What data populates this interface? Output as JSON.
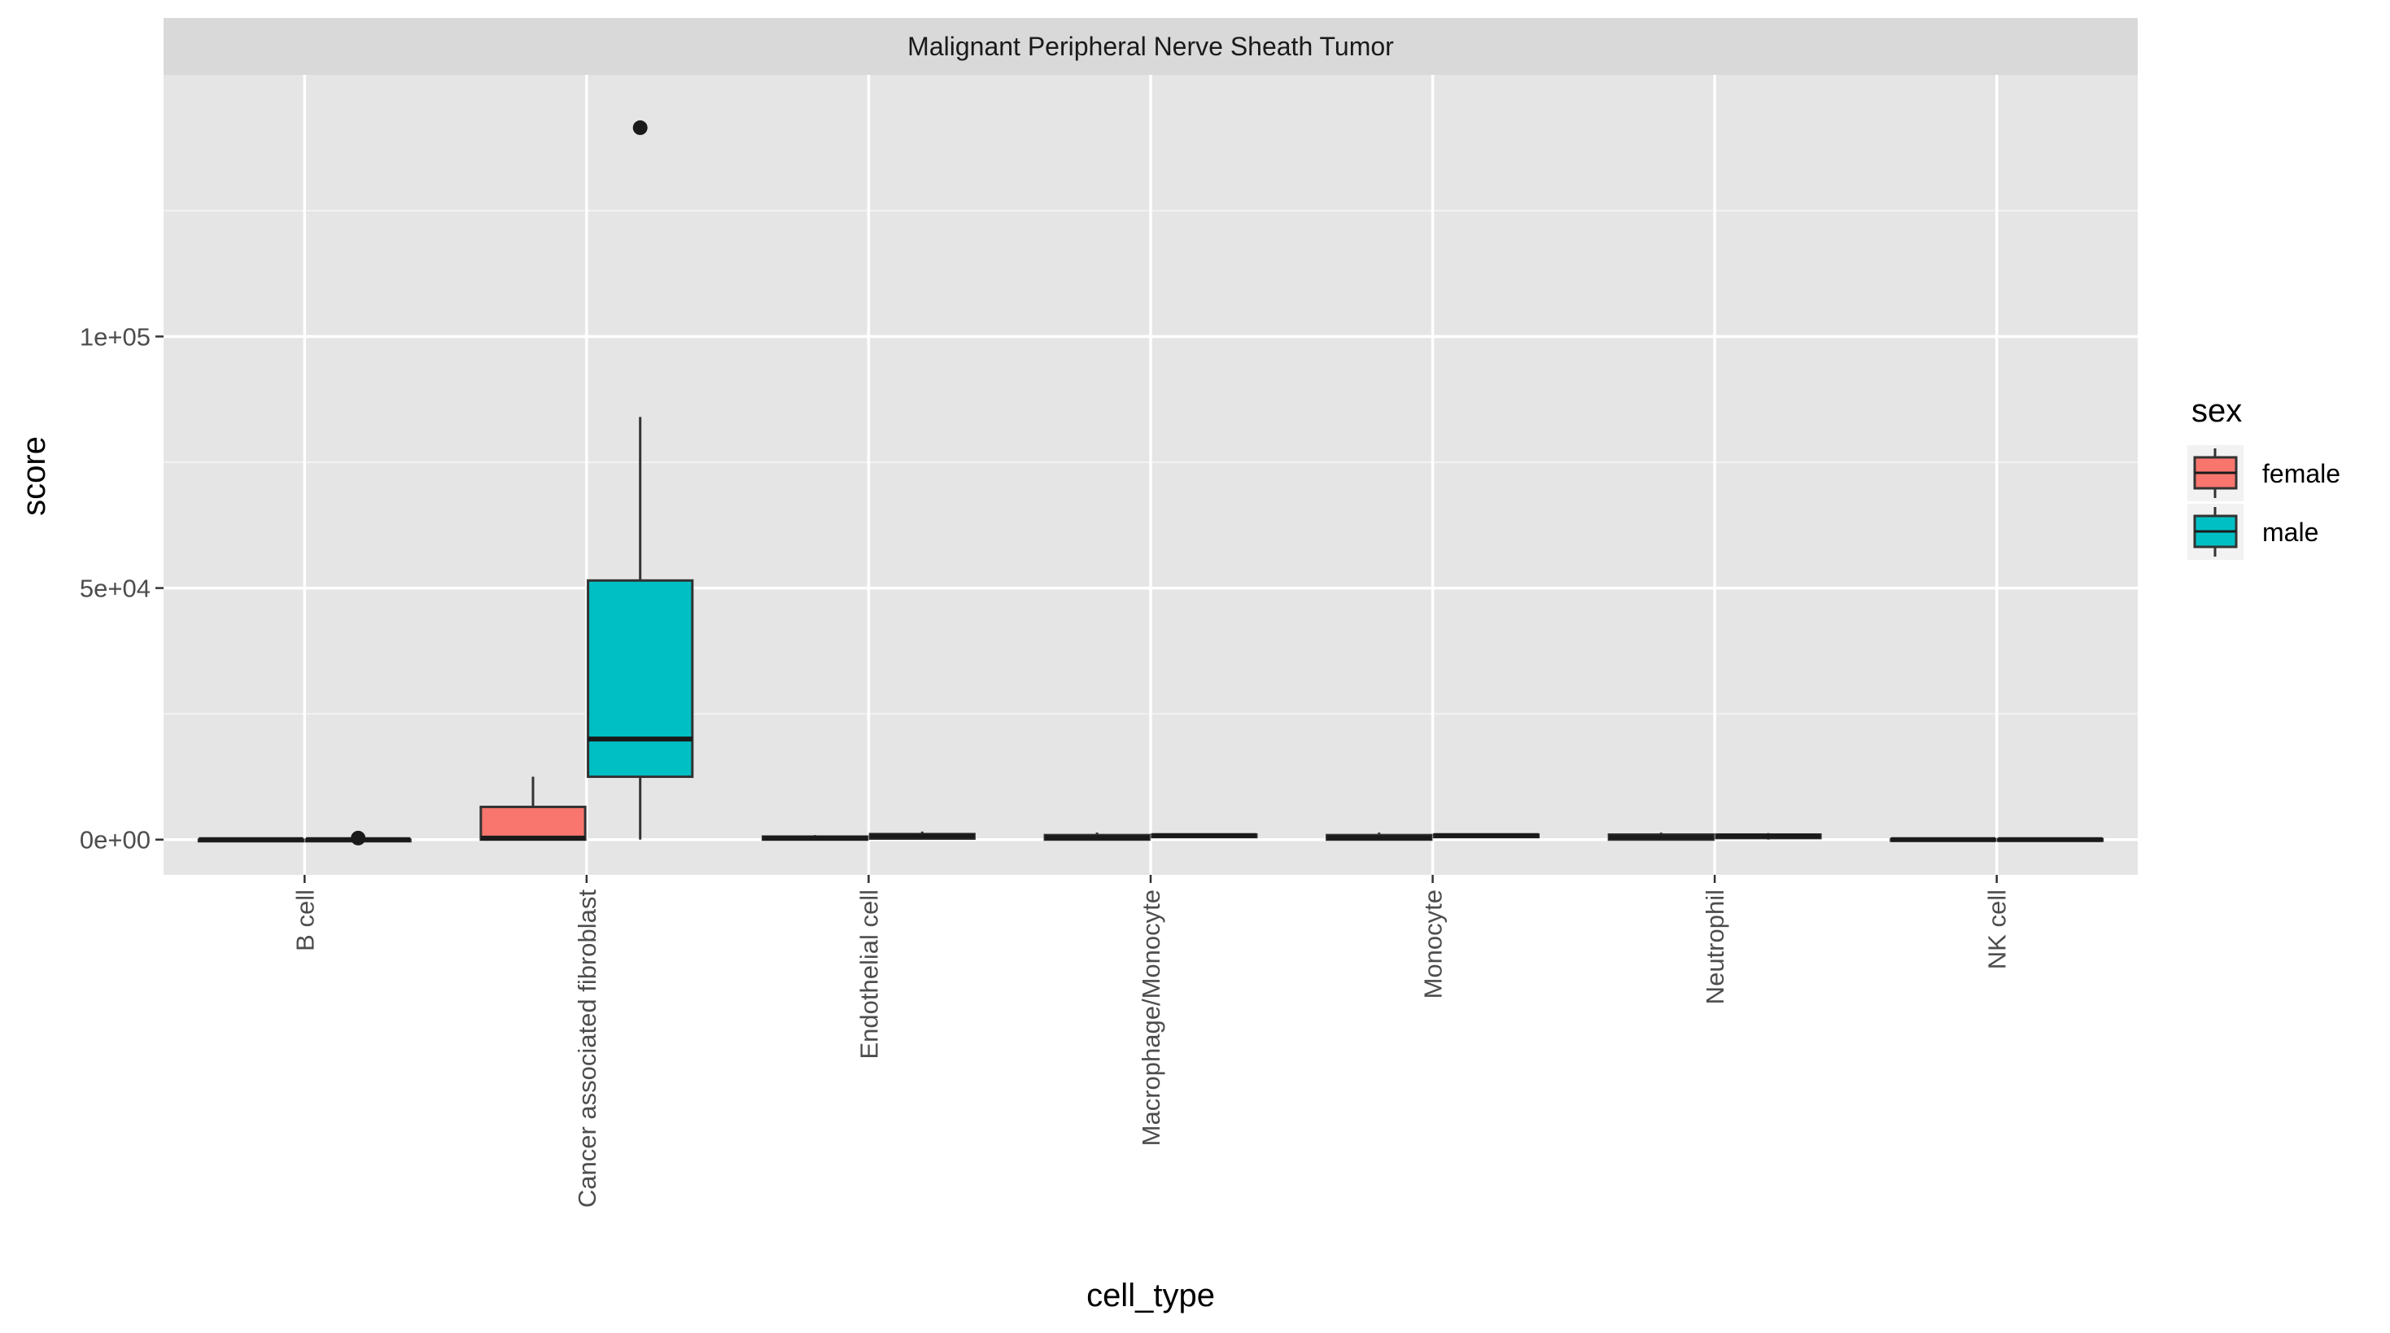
{
  "chart_data": {
    "type": "boxplot",
    "facet_title": "Malignant Peripheral Nerve Sheath Tumor",
    "xlabel": "cell_type",
    "ylabel": "score",
    "ylim": [
      -7000,
      152000
    ],
    "y_ticks": [
      0,
      50000,
      100000
    ],
    "y_tick_labels": [
      "0e+00",
      "5e+04",
      "1e+05"
    ],
    "y_minor_ticks": [
      25000,
      75000,
      125000
    ],
    "categories": [
      "B cell",
      "Cancer associated fibroblast",
      "Endothelial cell",
      "Macrophage/Monocyte",
      "Monocyte",
      "Neutrophil",
      "NK cell"
    ],
    "grid": true,
    "legend": {
      "title": "sex",
      "position": "right",
      "entries": [
        "female",
        "male"
      ]
    },
    "series": [
      {
        "name": "female",
        "color": "#F8766D",
        "boxes": [
          {
            "min": 0,
            "q1": 0,
            "median": 0,
            "q3": 0,
            "max": 0,
            "outliers": []
          },
          {
            "min": 0,
            "q1": 0,
            "median": 300,
            "q3": 6500,
            "max": 12500,
            "outliers": []
          },
          {
            "min": 0,
            "q1": 0,
            "median": 300,
            "q3": 600,
            "max": 900,
            "outliers": []
          },
          {
            "min": 0,
            "q1": 0,
            "median": 400,
            "q3": 900,
            "max": 1400,
            "outliers": []
          },
          {
            "min": 0,
            "q1": 0,
            "median": 400,
            "q3": 900,
            "max": 1400,
            "outliers": []
          },
          {
            "min": 0,
            "q1": 0,
            "median": 500,
            "q3": 1000,
            "max": 1400,
            "outliers": []
          },
          {
            "min": 0,
            "q1": 0,
            "median": 0,
            "q3": 100,
            "max": 200,
            "outliers": []
          }
        ]
      },
      {
        "name": "male",
        "color": "#00BFC4",
        "boxes": [
          {
            "min": 0,
            "q1": 0,
            "median": 0,
            "q3": 0,
            "max": 0,
            "outliers": [
              300
            ]
          },
          {
            "min": 0,
            "q1": 12500,
            "median": 20000,
            "q3": 51500,
            "max": 84000,
            "outliers": [
              141500
            ]
          },
          {
            "min": 0,
            "q1": 200,
            "median": 700,
            "q3": 1100,
            "max": 1600,
            "outliers": []
          },
          {
            "min": 300,
            "q1": 500,
            "median": 800,
            "q3": 1000,
            "max": 1200,
            "outliers": []
          },
          {
            "min": 300,
            "q1": 500,
            "median": 800,
            "q3": 1000,
            "max": 1200,
            "outliers": []
          },
          {
            "min": 0,
            "q1": 300,
            "median": 700,
            "q3": 1000,
            "max": 1300,
            "outliers": []
          },
          {
            "min": 0,
            "q1": 0,
            "median": 0,
            "q3": 100,
            "max": 200,
            "outliers": []
          }
        ]
      }
    ]
  }
}
